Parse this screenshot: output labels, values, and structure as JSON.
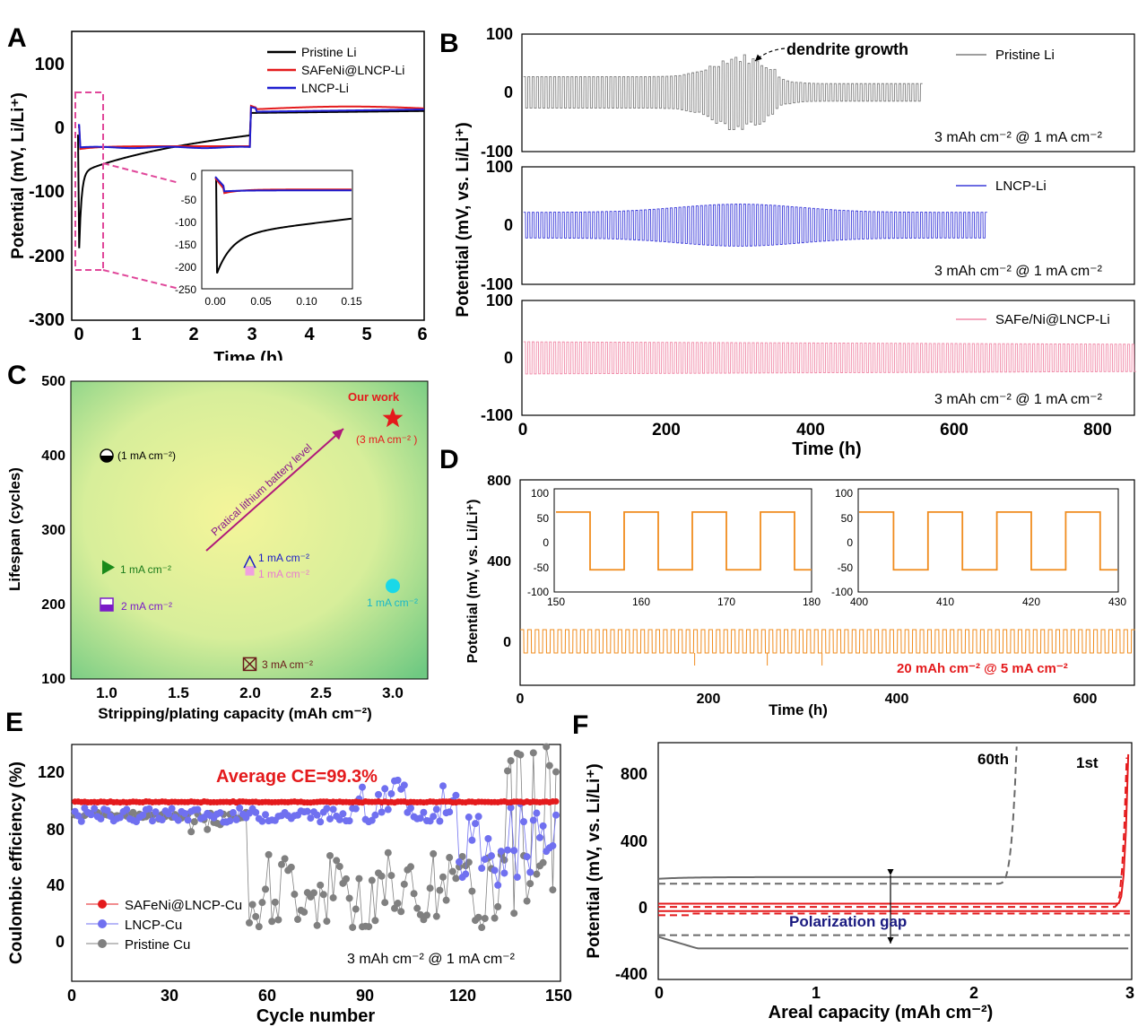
{
  "panels": {
    "A": {
      "letter": "A",
      "ylabel": "Potential (mV, Li/Li⁺)",
      "xlabel": "Time (h)",
      "yticks": [
        "100",
        "0",
        "-100",
        "-200",
        "-300"
      ],
      "xticks": [
        "0",
        "1",
        "2",
        "3",
        "4",
        "5",
        "6"
      ],
      "legend": [
        "Pristine Li",
        "SAFeNi@LNCP-Li",
        "LNCP-Li"
      ],
      "inset_yticks": [
        "0",
        "-50",
        "-100",
        "-150",
        "-200",
        "-250"
      ],
      "inset_xticks": [
        "0.00",
        "0.05",
        "0.10",
        "0.15"
      ]
    },
    "B": {
      "letter": "B",
      "ylabel": "Potential (mV, vs. Li/Li⁺)",
      "xlabel": "Time (h)",
      "xticks": [
        "0",
        "200",
        "400",
        "600",
        "800"
      ],
      "top_yticks": [
        "100",
        "0",
        "-100"
      ],
      "mid_yticks": [
        "100",
        "0",
        "-100"
      ],
      "bot_yticks": [
        "100",
        "0",
        "-100"
      ],
      "legend_top": "Pristine Li",
      "legend_mid": "LNCP-Li",
      "legend_bot": "SAFe/Ni@LNCP-Li",
      "annotation": "dendrite growth",
      "condition": "3 mAh cm⁻²  @ 1 mA cm⁻²"
    },
    "C": {
      "letter": "C",
      "ylabel": "Lifespan (cycles)",
      "xlabel": "Stripping/plating capacity (mAh cm⁻²)",
      "yticks": [
        "500",
        "400",
        "300",
        "200",
        "100"
      ],
      "xticks": [
        "1.0",
        "1.5",
        "2.0",
        "2.5",
        "3.0"
      ],
      "arrow_label": "Pratical lithium battery level",
      "our_work": "Our work",
      "labels": [
        "(1 mA cm⁻²)",
        "1 mA cm⁻²",
        "2 mA cm⁻²",
        "1 mA cm⁻²",
        "1 mA cm⁻²",
        "3 mA cm⁻²",
        "1 mA cm⁻²",
        "(3 mA cm⁻² )"
      ]
    },
    "D": {
      "letter": "D",
      "ylabel": "Potential (mV, vs. Li/Li⁺)",
      "xlabel": "Time (h)",
      "yticks": [
        "800",
        "400",
        "0"
      ],
      "xticks": [
        "0",
        "200",
        "400",
        "600"
      ],
      "inset1_xticks": [
        "150",
        "160",
        "170",
        "180"
      ],
      "inset2_xticks": [
        "400",
        "410",
        "420",
        "430"
      ],
      "inset_yticks": [
        "100",
        "50",
        "0",
        "-50",
        "-100"
      ],
      "condition": "20 mAh cm⁻² @ 5 mA cm⁻²"
    },
    "E": {
      "letter": "E",
      "ylabel": "Coulombic efficiency (%)",
      "xlabel": "Cycle number",
      "yticks": [
        "120",
        "80",
        "40",
        "0"
      ],
      "xticks": [
        "0",
        "30",
        "60",
        "90",
        "120",
        "150"
      ],
      "legend": [
        "SAFeNi@LNCP-Cu",
        "LNCP-Cu",
        "Pristine Cu"
      ],
      "average": "Average CE=99.3%",
      "condition": "3 mAh cm⁻² @ 1 mA cm⁻²"
    },
    "F": {
      "letter": "F",
      "ylabel": "Potential (mV, vs. Li/Li⁺)",
      "xlabel": "Areal capacity (mAh cm⁻²)",
      "yticks": [
        "800",
        "400",
        "0",
        "-400"
      ],
      "xticks": [
        "0",
        "1",
        "2",
        "3"
      ],
      "label_60": "60th",
      "label_1": "1st",
      "gap": "Polarization gap"
    }
  },
  "chart_data": [
    {
      "type": "line",
      "panel": "A",
      "x_range": [
        0,
        6
      ],
      "y_range": [
        -300,
        150
      ],
      "series": [
        {
          "name": "Pristine Li",
          "color": "#000000"
        },
        {
          "name": "SAFeNi@LNCP-Li",
          "color": "#e41a1c"
        },
        {
          "name": "LNCP-Li",
          "color": "#1f1fd0"
        }
      ]
    },
    {
      "type": "line",
      "panel": "B",
      "x_range": [
        0,
        850
      ],
      "y_range": [
        -100,
        100
      ],
      "series": [
        {
          "name": "Pristine Li",
          "color": "#7f7f7f",
          "end": 555
        },
        {
          "name": "LNCP-Li",
          "color": "#3b3bd9",
          "end": 645
        },
        {
          "name": "SAFe/Ni@LNCP-Li",
          "color": "#f08aa8",
          "end": 850
        }
      ]
    },
    {
      "type": "scatter",
      "panel": "C",
      "x_range": [
        0.75,
        3.25
      ],
      "y_range": [
        100,
        500
      ],
      "points": [
        {
          "x": 1.0,
          "y": 400
        },
        {
          "x": 1.0,
          "y": 250
        },
        {
          "x": 1.0,
          "y": 200
        },
        {
          "x": 2.0,
          "y": 255
        },
        {
          "x": 2.0,
          "y": 245
        },
        {
          "x": 2.0,
          "y": 120
        },
        {
          "x": 3.0,
          "y": 225
        },
        {
          "x": 3.0,
          "y": 450
        }
      ]
    },
    {
      "type": "line",
      "panel": "D",
      "x_range": [
        0,
        650
      ],
      "y_range": [
        -100,
        800
      ],
      "series": [
        {
          "name": "",
          "color": "#f08c1e"
        }
      ]
    },
    {
      "type": "scatter",
      "panel": "E",
      "x_range": [
        0,
        150
      ],
      "y_range": [
        -10,
        140
      ],
      "series": [
        {
          "name": "SAFeNi@LNCP-Cu",
          "color": "#e41a1c",
          "mean": 99.3
        },
        {
          "name": "LNCP-Cu",
          "color": "#7070f0"
        },
        {
          "name": "Pristine Cu",
          "color": "#808080"
        }
      ]
    },
    {
      "type": "line",
      "panel": "F",
      "x_range": [
        0,
        3
      ],
      "y_range": [
        -400,
        1000
      ],
      "series": [
        {
          "name": "60th",
          "color": "#6a6a6a"
        },
        {
          "name": "1st",
          "color": "#e41a1c"
        }
      ]
    }
  ]
}
